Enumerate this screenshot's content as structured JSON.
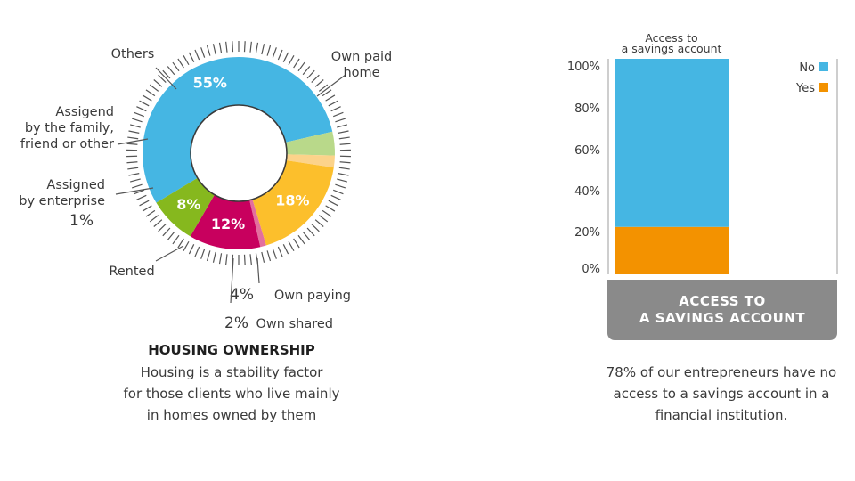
{
  "chart_data": [
    {
      "type": "pie",
      "variant": "donut",
      "title": "HOUSING OWNERSHIP",
      "description_lines": [
        "Housing is a stability factor",
        "for those clients who live mainly",
        "in homes owned by them"
      ],
      "slices": [
        {
          "label_lines": [
            "Own paid",
            "home"
          ],
          "value": 55,
          "display": "55%",
          "color": "#45b6e3"
        },
        {
          "label_lines": [
            "Own paying"
          ],
          "value": 4,
          "display": "4%",
          "color": "#b9d98a"
        },
        {
          "label_lines": [
            "Own shared"
          ],
          "value": 2,
          "display": "2%",
          "color": "#fcd38a"
        },
        {
          "label_lines": [
            "Rented"
          ],
          "value": 18,
          "display": "18%",
          "color": "#fcbf2c"
        },
        {
          "label_lines": [
            "Assigned",
            "by enterprise"
          ],
          "value": 1,
          "display": "1%",
          "color": "#e36f9e"
        },
        {
          "label_lines": [
            "Assigend",
            "by the family,",
            "friend or other"
          ],
          "value": 12,
          "display": "12%",
          "color": "#c8005e"
        },
        {
          "label_lines": [
            "Others"
          ],
          "value": 8,
          "display": "8%",
          "color": "#86b81e"
        }
      ]
    },
    {
      "type": "bar",
      "variant": "stacked-100",
      "title": "ACCESS TO A SAVINGS ACCOUNT",
      "title_lines": [
        "ACCESS TO",
        "A SAVINGS ACCOUNT"
      ],
      "category_label_lines": [
        "Access to",
        "a savings account"
      ],
      "series": [
        {
          "name": "Yes",
          "values": [
            22
          ],
          "color": "#f39200"
        },
        {
          "name": "No",
          "values": [
            78
          ],
          "color": "#45b6e3"
        }
      ],
      "legend_order": [
        "No",
        "Yes"
      ],
      "legend_position": "top-right",
      "yticks": [
        "0%",
        "20%",
        "40%",
        "60%",
        "80%",
        "100%"
      ],
      "ylim": [
        0,
        100
      ],
      "caption": "78% of our entrepreneurs have no access to a savings account in a financial institution."
    }
  ]
}
